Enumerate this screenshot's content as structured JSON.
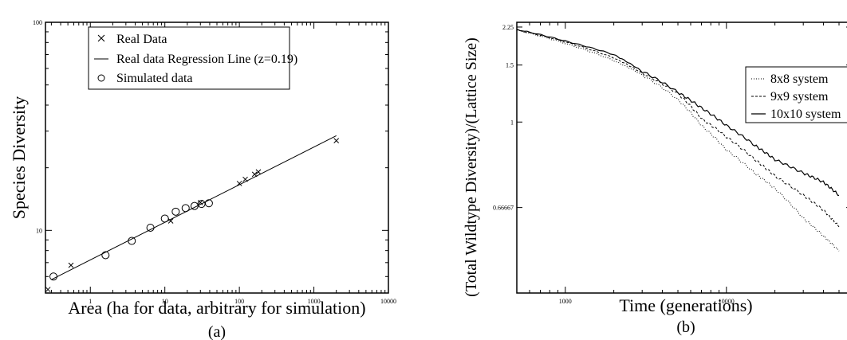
{
  "chart_data": [
    {
      "type": "scatter",
      "caption": "(a)",
      "xlabel": "Area (ha for data, arbitrary for simulation)",
      "ylabel": "Species Diversity",
      "xscale": "log",
      "yscale": "log",
      "xlim": [
        0.25,
        10000
      ],
      "ylim": [
        5,
        100
      ],
      "x_ticks": [
        1,
        10,
        100,
        1000,
        10000
      ],
      "y_ticks": [
        10,
        100
      ],
      "legend": {
        "position": "top-left",
        "entries": [
          "Real Data",
          "Real data Regression Line (z=0.19)",
          "Simulated data"
        ]
      },
      "series": [
        {
          "name": "Real Data",
          "marker": "x",
          "points": [
            [
              0.27,
              5.2
            ],
            [
              0.55,
              6.8
            ],
            [
              12,
              11.1
            ],
            [
              30,
              13.6
            ],
            [
              100,
              16.8
            ],
            [
              120,
              17.6
            ],
            [
              160,
              18.6
            ],
            [
              180,
              19.1
            ],
            [
              2000,
              27.0
            ]
          ]
        },
        {
          "name": "Real data Regression Line (z=0.19)",
          "marker": "line",
          "points": [
            [
              0.3,
              5.8
            ],
            [
              2000,
              28.5
            ]
          ]
        },
        {
          "name": "Simulated data",
          "marker": "circle",
          "points": [
            [
              0.32,
              6.0
            ],
            [
              1.6,
              7.6
            ],
            [
              3.6,
              8.9
            ],
            [
              6.4,
              10.3
            ],
            [
              10,
              11.4
            ],
            [
              14,
              12.3
            ],
            [
              19,
              12.8
            ],
            [
              25,
              13.1
            ],
            [
              31,
              13.4
            ],
            [
              39,
              13.5
            ]
          ]
        }
      ]
    },
    {
      "type": "line",
      "caption": "(b)",
      "xlabel": "Time (generations)",
      "ylabel": "(Total Wildtype Diversity)/(Lattice Size)",
      "xscale": "log",
      "yscale": "reciprocal",
      "xlim": [
        500,
        60000
      ],
      "ylim": [
        0.5,
        2.4
      ],
      "x_ticks": [
        1000,
        10000
      ],
      "y_ticks": [
        2.25,
        1.5,
        1,
        0.66667
      ],
      "y_tick_labels": [
        "2.25",
        "1.5",
        "1",
        "0.66667"
      ],
      "legend": {
        "position": "top-right",
        "entries": [
          "8x8 system",
          "9x9 system",
          "10x10 system"
        ]
      },
      "series": [
        {
          "name": "8x8 system",
          "style": "dotted",
          "points": [
            [
              500,
              2.16
            ],
            [
              1000,
              1.85
            ],
            [
              2000,
              1.56
            ],
            [
              3000,
              1.38
            ],
            [
              5000,
              1.15
            ],
            [
              7000,
              0.98
            ],
            [
              10000,
              0.86
            ],
            [
              15000,
              0.77
            ],
            [
              20000,
              0.72
            ],
            [
              30000,
              0.64
            ],
            [
              40000,
              0.6
            ],
            [
              50000,
              0.57
            ]
          ]
        },
        {
          "name": "9x9 system",
          "style": "dashed",
          "points": [
            [
              500,
              2.17
            ],
            [
              1000,
              1.88
            ],
            [
              2000,
              1.6
            ],
            [
              3000,
              1.4
            ],
            [
              5000,
              1.2
            ],
            [
              7000,
              1.02
            ],
            [
              10000,
              0.92
            ],
            [
              15000,
              0.82
            ],
            [
              20000,
              0.76
            ],
            [
              30000,
              0.7
            ],
            [
              40000,
              0.66
            ],
            [
              50000,
              0.62
            ]
          ]
        },
        {
          "name": "10x10 system",
          "style": "solid",
          "points": [
            [
              500,
              2.18
            ],
            [
              1000,
              1.9
            ],
            [
              2000,
              1.65
            ],
            [
              3000,
              1.42
            ],
            [
              5000,
              1.21
            ],
            [
              7000,
              1.09
            ],
            [
              10000,
              0.98
            ],
            [
              15000,
              0.88
            ],
            [
              20000,
              0.82
            ],
            [
              30000,
              0.77
            ],
            [
              40000,
              0.74
            ],
            [
              50000,
              0.7
            ]
          ]
        }
      ]
    }
  ]
}
